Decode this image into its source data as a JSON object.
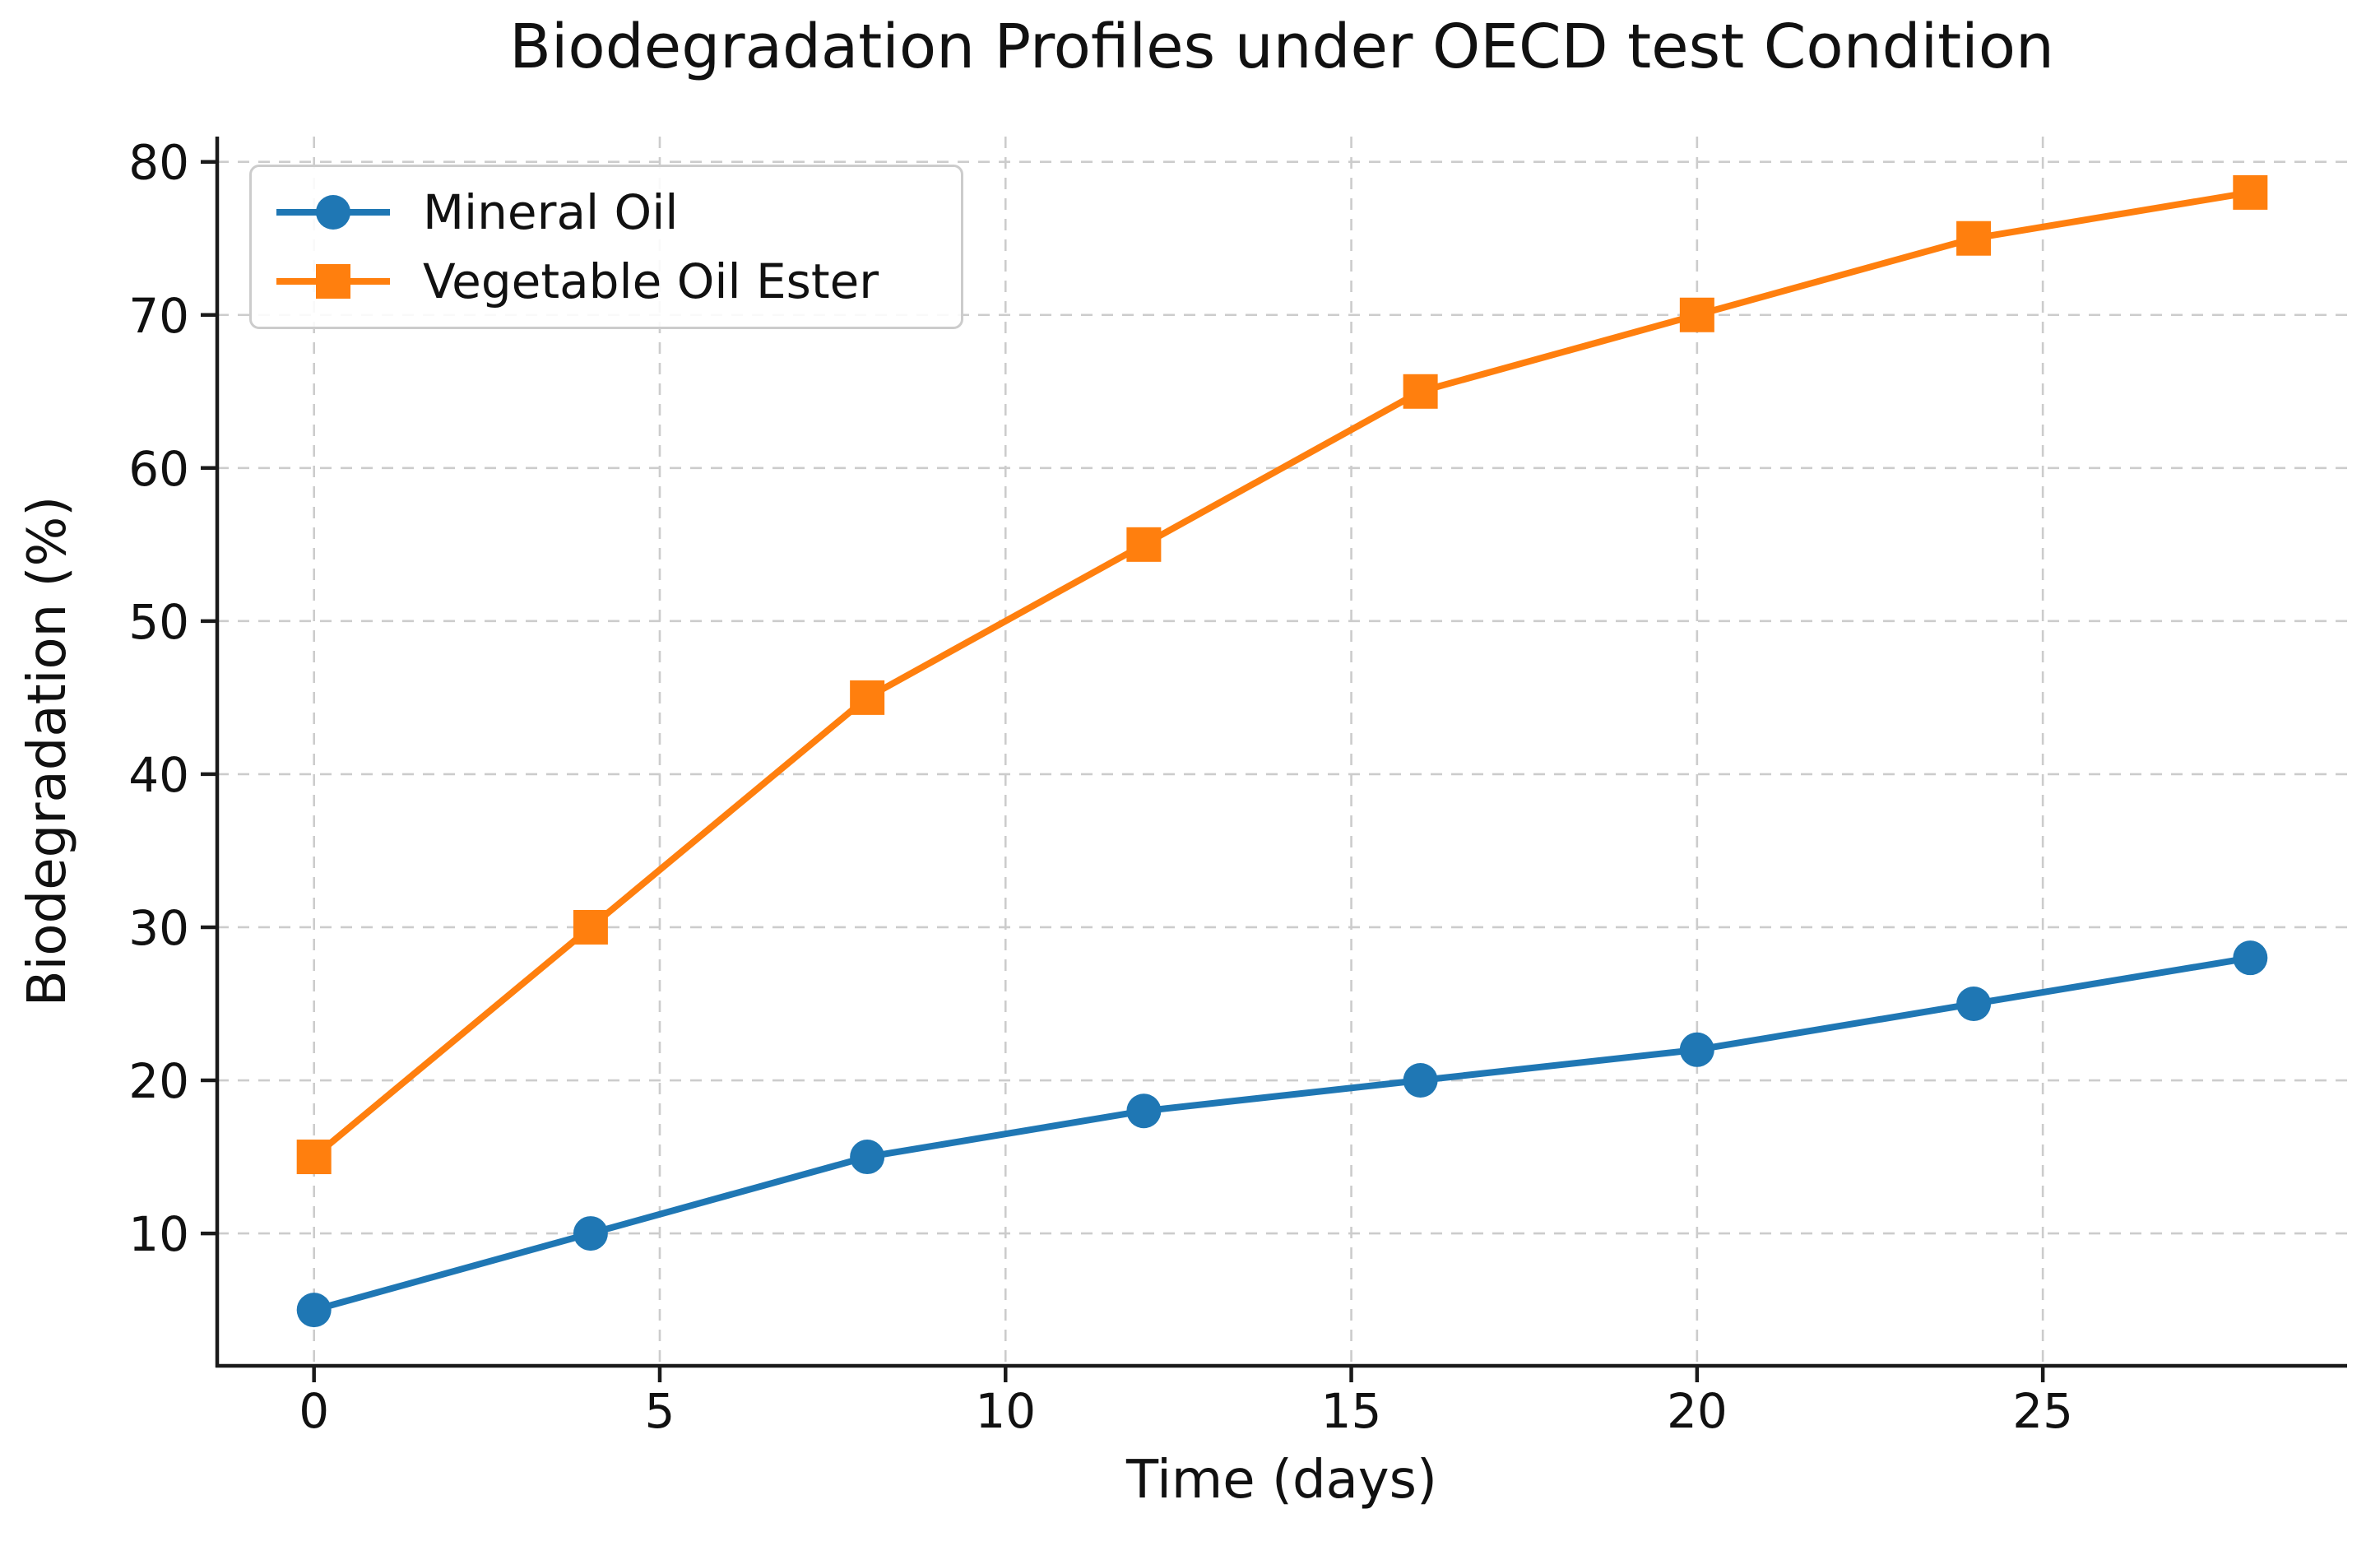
{
  "chart_data": {
    "type": "line",
    "title": "Biodegradation Profiles under OECD test Condition",
    "xlabel": "Time (days)",
    "ylabel": "Biodegradation (%)",
    "x": [
      0,
      4,
      8,
      12,
      16,
      20,
      24,
      28
    ],
    "series": [
      {
        "name": "Mineral Oil",
        "color": "#1f77b4",
        "marker": "circle",
        "values": [
          5,
          10,
          15,
          18,
          20,
          22,
          25,
          28
        ]
      },
      {
        "name": "Vegetable Oil Ester",
        "color": "#ff7f0e",
        "marker": "square",
        "values": [
          15,
          30,
          45,
          55,
          65,
          70,
          75,
          78
        ]
      }
    ],
    "xticks": [
      0,
      5,
      10,
      15,
      20,
      25
    ],
    "yticks": [
      10,
      20,
      30,
      40,
      50,
      60,
      70,
      80
    ],
    "xlim": [
      -1.4,
      29.4
    ],
    "ylim": [
      1.35,
      81.65
    ],
    "grid": {
      "on": true,
      "style": "dashed",
      "color": "#cccccc"
    },
    "axis_color": "#1a1a1a",
    "legend": {
      "position": "upper-left"
    }
  }
}
